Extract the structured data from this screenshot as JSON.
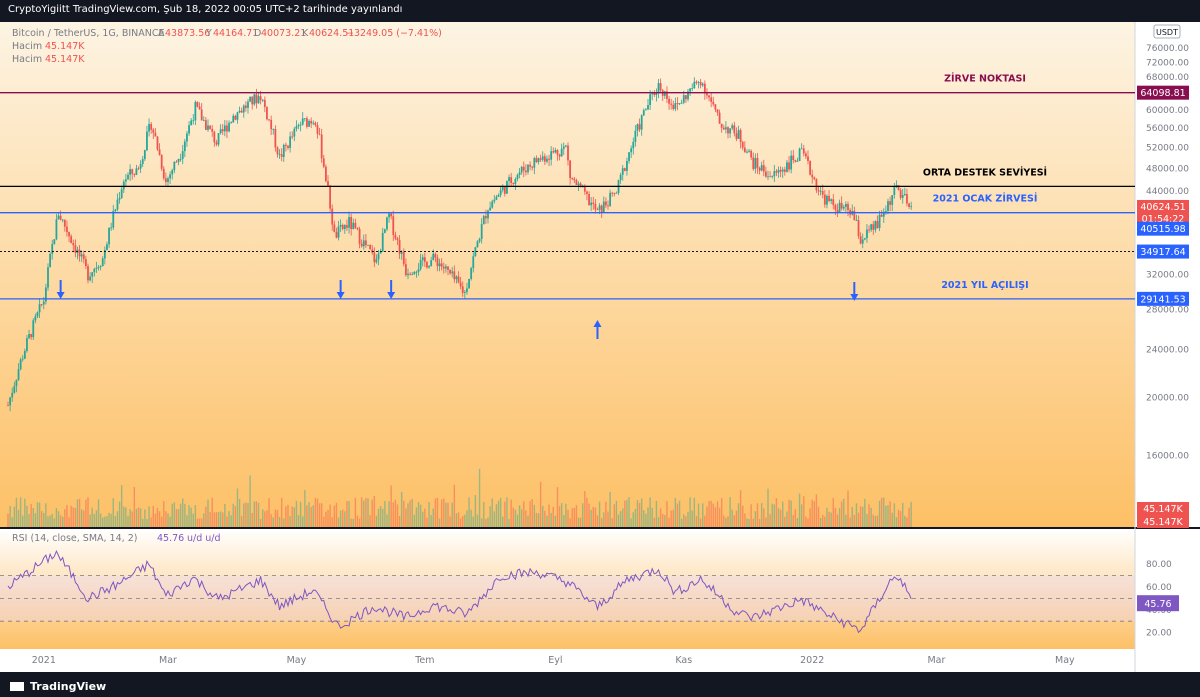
{
  "header": {
    "text": "CryptoYigiitt TradingView.com, Şub 18, 2022 00:05 UTC+2 tarihinde yayınlandı"
  },
  "footer": {
    "brand": "TradingView"
  },
  "legend": {
    "symbol": "Bitcoin / TetherUS, 1G, BINANCE",
    "ohlc": [
      {
        "k": "A",
        "v": "43873.56"
      },
      {
        "k": "Y",
        "v": "44164.71"
      },
      {
        "k": "D",
        "v": "40073.21"
      },
      {
        "k": "K",
        "v": "40624.51"
      }
    ],
    "change": "−3249.05 (−7.41%)",
    "volume_rows": [
      {
        "label": "Hacim",
        "value": "45.147K"
      },
      {
        "label": "Hacim",
        "value": "45.147K"
      }
    ],
    "currency": "USDT"
  },
  "rsi_legend": {
    "label": "RSI (14, close, SMA, 14, 2)",
    "value": "45.76",
    "extra": "u/d u/d"
  },
  "colors": {
    "up": "#26a69a",
    "down": "#ef5350",
    "rsi_line": "#7e57c2",
    "blue_level": "#2962ff",
    "resistance": "#880e4f",
    "bg_top": "#fdf1d8",
    "bg_bottom": "#fdbf5d"
  },
  "chart_data": [
    {
      "type": "candlestick",
      "title": "Bitcoin / TetherUS, 1G, BINANCE",
      "x_ticks": [
        "2021",
        "Mar",
        "May",
        "Tem",
        "Eyl",
        "Kas",
        "2022",
        "Mar",
        "May"
      ],
      "y_ticks": [
        "76000.00",
        "72000.00",
        "68000.00",
        "60000.00",
        "56000.00",
        "52000.00",
        "48000.00",
        "44000.00",
        "32000.00",
        "28000.00",
        "24000.00",
        "20000.00",
        "16000.00"
      ],
      "ylim": [
        13000,
        79000
      ],
      "x_range": [
        "2020-12-15",
        "2022-05-31"
      ],
      "last_close": 40624.51,
      "countdown": "01:54:22",
      "series": [
        {
          "date": "2020-12-15",
          "close": 19400
        },
        {
          "date": "2020-12-22",
          "close": 23500
        },
        {
          "date": "2021-01-01",
          "close": 29000
        },
        {
          "date": "2021-01-08",
          "close": 40500
        },
        {
          "date": "2021-01-15",
          "close": 36000
        },
        {
          "date": "2021-01-22",
          "close": 32000
        },
        {
          "date": "2021-01-29",
          "close": 34000
        },
        {
          "date": "2021-02-08",
          "close": 46000
        },
        {
          "date": "2021-02-15",
          "close": 48000
        },
        {
          "date": "2021-02-21",
          "close": 57000
        },
        {
          "date": "2021-02-28",
          "close": 45500
        },
        {
          "date": "2021-03-07",
          "close": 51000
        },
        {
          "date": "2021-03-14",
          "close": 60500
        },
        {
          "date": "2021-03-24",
          "close": 53000
        },
        {
          "date": "2021-04-01",
          "close": 58700
        },
        {
          "date": "2021-04-14",
          "close": 63500
        },
        {
          "date": "2021-04-23",
          "close": 50000
        },
        {
          "date": "2021-05-03",
          "close": 57000
        },
        {
          "date": "2021-05-10",
          "close": 58000
        },
        {
          "date": "2021-05-19",
          "close": 37000
        },
        {
          "date": "2021-05-26",
          "close": 39000
        },
        {
          "date": "2021-06-08",
          "close": 33500
        },
        {
          "date": "2021-06-14",
          "close": 40000
        },
        {
          "date": "2021-06-22",
          "close": 32500
        },
        {
          "date": "2021-07-06",
          "close": 34000
        },
        {
          "date": "2021-07-20",
          "close": 29800
        },
        {
          "date": "2021-07-31",
          "close": 41500
        },
        {
          "date": "2021-08-14",
          "close": 47000
        },
        {
          "date": "2021-08-23",
          "close": 49500
        },
        {
          "date": "2021-09-06",
          "close": 52000
        },
        {
          "date": "2021-09-08",
          "close": 46500
        },
        {
          "date": "2021-09-21",
          "close": 40500
        },
        {
          "date": "2021-09-30",
          "close": 43800
        },
        {
          "date": "2021-10-15",
          "close": 61500
        },
        {
          "date": "2021-10-20",
          "close": 66000
        },
        {
          "date": "2021-10-28",
          "close": 60500
        },
        {
          "date": "2021-11-09",
          "close": 67500
        },
        {
          "date": "2021-11-18",
          "close": 57000
        },
        {
          "date": "2021-11-27",
          "close": 54500
        },
        {
          "date": "2021-12-04",
          "close": 49000
        },
        {
          "date": "2021-12-13",
          "close": 46500
        },
        {
          "date": "2021-12-27",
          "close": 50800
        },
        {
          "date": "2022-01-05",
          "close": 43500
        },
        {
          "date": "2022-01-10",
          "close": 41800
        },
        {
          "date": "2022-01-20",
          "close": 40500
        },
        {
          "date": "2022-01-24",
          "close": 36500
        },
        {
          "date": "2022-02-01",
          "close": 38700
        },
        {
          "date": "2022-02-10",
          "close": 44500
        },
        {
          "date": "2022-02-14",
          "close": 42500
        },
        {
          "date": "2022-02-17",
          "close": 40624.51
        }
      ],
      "horizontal_levels": [
        {
          "value": 64098.81,
          "label": "ZİRVE NOKTASI",
          "color": "#880e4f"
        },
        {
          "value": 44800,
          "label": "ORTA DESTEK SEVİYESİ",
          "color": "#000000"
        },
        {
          "value": 40515.98,
          "label": "2021 OCAK ZİRVESİ",
          "color": "#2962ff"
        },
        {
          "value": 34917.64,
          "label": "",
          "color": "#131722",
          "dotted": true
        },
        {
          "value": 29141.53,
          "label": "2021 YIL AÇILIŞI",
          "color": "#2962ff"
        }
      ],
      "price_labels": [
        "64098.81",
        "40624.51",
        "40515.98",
        "34917.64",
        "29141.53"
      ],
      "volume_labels": [
        "45.147K",
        "45.147K"
      ],
      "annotations": [
        {
          "date": "2021-01-09",
          "direction": "down"
        },
        {
          "date": "2021-05-22",
          "direction": "down"
        },
        {
          "date": "2021-06-15",
          "direction": "down"
        },
        {
          "date": "2021-09-21",
          "direction": "up"
        },
        {
          "date": "2022-01-21",
          "direction": "down"
        }
      ]
    },
    {
      "type": "line",
      "title": "RSI (14, close, SMA, 14, 2)",
      "y_ticks": [
        "80.00",
        "60.00",
        "40.00",
        "20.00"
      ],
      "ylim": [
        10,
        95
      ],
      "bands": [
        70,
        50,
        30
      ],
      "last_value": 45.76,
      "series": [
        {
          "date": "2020-12-15",
          "value": 60
        },
        {
          "date": "2020-12-24",
          "value": 72
        },
        {
          "date": "2021-01-07",
          "value": 90
        },
        {
          "date": "2021-01-22",
          "value": 50
        },
        {
          "date": "2021-02-05",
          "value": 62
        },
        {
          "date": "2021-02-20",
          "value": 80
        },
        {
          "date": "2021-02-28",
          "value": 52
        },
        {
          "date": "2021-03-13",
          "value": 68
        },
        {
          "date": "2021-03-25",
          "value": 49
        },
        {
          "date": "2021-04-14",
          "value": 66
        },
        {
          "date": "2021-04-23",
          "value": 43
        },
        {
          "date": "2021-05-09",
          "value": 57
        },
        {
          "date": "2021-05-21",
          "value": 25
        },
        {
          "date": "2021-06-07",
          "value": 43
        },
        {
          "date": "2021-06-22",
          "value": 33
        },
        {
          "date": "2021-07-05",
          "value": 44
        },
        {
          "date": "2021-07-21",
          "value": 36
        },
        {
          "date": "2021-08-06",
          "value": 70
        },
        {
          "date": "2021-08-23",
          "value": 73
        },
        {
          "date": "2021-09-07",
          "value": 64
        },
        {
          "date": "2021-09-21",
          "value": 42
        },
        {
          "date": "2021-10-05",
          "value": 66
        },
        {
          "date": "2021-10-20",
          "value": 76
        },
        {
          "date": "2021-10-28",
          "value": 55
        },
        {
          "date": "2021-11-09",
          "value": 67
        },
        {
          "date": "2021-11-26",
          "value": 38
        },
        {
          "date": "2021-12-04",
          "value": 33
        },
        {
          "date": "2021-12-27",
          "value": 49
        },
        {
          "date": "2022-01-10",
          "value": 34
        },
        {
          "date": "2022-01-24",
          "value": 22
        },
        {
          "date": "2022-02-07",
          "value": 65
        },
        {
          "date": "2022-02-12",
          "value": 69
        },
        {
          "date": "2022-02-17",
          "value": 45.76
        }
      ]
    }
  ]
}
